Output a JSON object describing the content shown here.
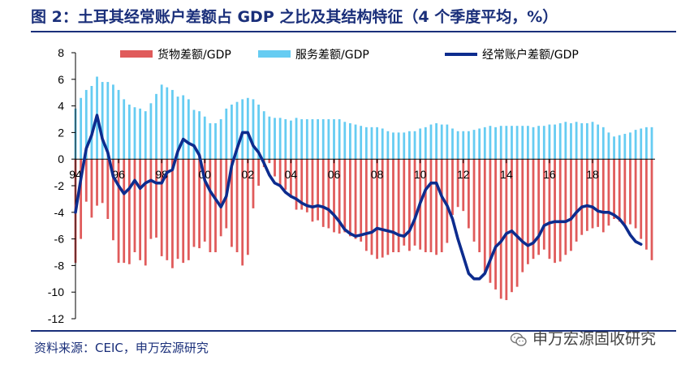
{
  "header": {
    "title": "图 2：土耳其经常账户差额占 GDP 之比及其结构特征（4 个季度平均，%）"
  },
  "footer": {
    "source": "资料来源：CEIC，申万宏源研究",
    "watermark": "申万宏源固收研究"
  },
  "icons": {
    "watermark": "wechat-icon"
  },
  "colors": {
    "goods": "#e05b5b",
    "services": "#66ccf2",
    "current_account": "#0d2c8e",
    "rule": "#1a2f7a"
  },
  "chart_data": {
    "type": "bar+line",
    "ylim": [
      -12,
      8
    ],
    "yticks": [
      "8",
      "6",
      "4",
      "2",
      "0",
      "-2",
      "-4",
      "-6",
      "-8",
      "-10",
      "-12"
    ],
    "xticks": [
      "94",
      "96",
      "98",
      "00",
      "02",
      "04",
      "06",
      "08",
      "10",
      "12",
      "14",
      "16",
      "18"
    ],
    "xlabel": "",
    "ylabel": "",
    "legend_position": "top",
    "grid": false,
    "x_start": "1994Q1",
    "x_end": "2018Q1",
    "series": [
      {
        "name": "货物差额/GDP",
        "kind": "bar",
        "values": [
          -7.8,
          -6.0,
          -3.2,
          -4.4,
          -3.5,
          -3.3,
          -4.5,
          -6.1,
          -7.8,
          -7.8,
          -7.9,
          -7.0,
          -7.6,
          -8.0,
          -6.0,
          -5.9,
          -7.3,
          -7.6,
          -8.2,
          -7.5,
          -7.8,
          -7.6,
          -6.6,
          -6.7,
          -6.2,
          -7.0,
          -7.0,
          -5.8,
          -5.2,
          -6.6,
          -7.0,
          -8.0,
          -7.2,
          -3.7,
          -2.0,
          -0.6,
          -0.3,
          -1.3,
          -2.0,
          -2.3,
          -2.9,
          -3.8,
          -3.8,
          -4.0,
          -4.7,
          -4.6,
          -5.1,
          -5.2,
          -5.5,
          -5.6,
          -5.5,
          -5.8,
          -6.0,
          -6.2,
          -6.9,
          -7.2,
          -7.5,
          -7.4,
          -7.2,
          -7.0,
          -7.0,
          -6.5,
          -6.9,
          -6.5,
          -6.8,
          -7.0,
          -7.0,
          -7.2,
          -7.0,
          -6.3,
          -4.2,
          -3.6,
          -3.9,
          -5.2,
          -6.2,
          -7.0,
          -8.5,
          -9.3,
          -9.8,
          -10.5,
          -10.6,
          -10.0,
          -9.6,
          -8.5,
          -7.9,
          -7.5,
          -7.2,
          -6.8,
          -7.5,
          -7.8,
          -7.7,
          -7.2,
          -6.9,
          -6.2,
          -5.7,
          -5.4,
          -5.2,
          -5.1,
          -5.5,
          -5.0,
          -4.5,
          -4.7,
          -4.9,
          -4.9,
          -5.2,
          -6.0,
          -6.8,
          -7.6
        ]
      },
      {
        "name": "服务差额/GDP",
        "kind": "bar",
        "values": [
          3.8,
          4.6,
          5.2,
          5.5,
          6.2,
          5.8,
          5.8,
          5.6,
          5.2,
          4.5,
          4.1,
          3.9,
          3.8,
          3.6,
          4.2,
          4.9,
          5.6,
          5.4,
          5.2,
          4.7,
          4.8,
          4.5,
          3.7,
          3.6,
          3.2,
          2.7,
          2.7,
          3.0,
          3.8,
          4.1,
          4.3,
          4.5,
          4.6,
          4.5,
          4.1,
          3.6,
          3.2,
          3.1,
          3.1,
          3.0,
          2.9,
          3.1,
          3.0,
          3.0,
          3.0,
          3.0,
          3.0,
          3.0,
          3.0,
          3.0,
          2.8,
          2.7,
          2.6,
          2.5,
          2.4,
          2.4,
          2.4,
          2.3,
          2.1,
          2.0,
          2.0,
          2.0,
          2.1,
          2.1,
          2.3,
          2.4,
          2.6,
          2.7,
          2.6,
          2.6,
          2.3,
          2.1,
          2.1,
          2.1,
          2.2,
          2.3,
          2.4,
          2.5,
          2.4,
          2.5,
          2.5,
          2.5,
          2.5,
          2.5,
          2.5,
          2.4,
          2.5,
          2.5,
          2.6,
          2.6,
          2.7,
          2.8,
          2.7,
          2.8,
          2.7,
          2.7,
          2.8,
          2.6,
          2.4,
          2.0,
          1.7,
          1.8,
          1.9,
          2.0,
          2.2,
          2.3,
          2.4,
          2.4
        ]
      },
      {
        "name": "经常账户差额/GDP",
        "kind": "line",
        "values": [
          -4.0,
          -1.5,
          0.8,
          1.8,
          3.3,
          1.5,
          0.5,
          -1.3,
          -2.0,
          -2.6,
          -2.2,
          -1.6,
          -2.2,
          -1.8,
          -1.6,
          -1.8,
          -1.8,
          -1.0,
          -0.8,
          0.6,
          1.5,
          1.2,
          1.0,
          0.3,
          -1.6,
          -2.4,
          -3.0,
          -3.6,
          -2.8,
          -0.5,
          0.8,
          2.0,
          2.0,
          1.0,
          0.5,
          -0.3,
          -1.2,
          -1.8,
          -2.0,
          -2.5,
          -2.8,
          -3.0,
          -3.3,
          -3.5,
          -3.6,
          -3.5,
          -3.6,
          -3.8,
          -4.2,
          -4.7,
          -5.3,
          -5.6,
          -5.8,
          -5.7,
          -5.6,
          -5.5,
          -5.2,
          -5.3,
          -5.4,
          -5.5,
          -5.7,
          -5.8,
          -5.4,
          -4.5,
          -3.3,
          -2.3,
          -1.8,
          -1.8,
          -2.8,
          -3.5,
          -4.5,
          -6.0,
          -7.3,
          -8.6,
          -9.0,
          -9.0,
          -8.6,
          -7.6,
          -6.6,
          -6.2,
          -5.6,
          -5.4,
          -5.8,
          -6.2,
          -6.5,
          -6.3,
          -5.8,
          -5.0,
          -4.8,
          -4.7,
          -4.7,
          -4.7,
          -4.5,
          -4.0,
          -3.6,
          -3.5,
          -3.6,
          -3.9,
          -4.0,
          -4.0,
          -4.2,
          -4.5,
          -5.0,
          -5.7,
          -6.2,
          -6.4
        ]
      }
    ]
  }
}
